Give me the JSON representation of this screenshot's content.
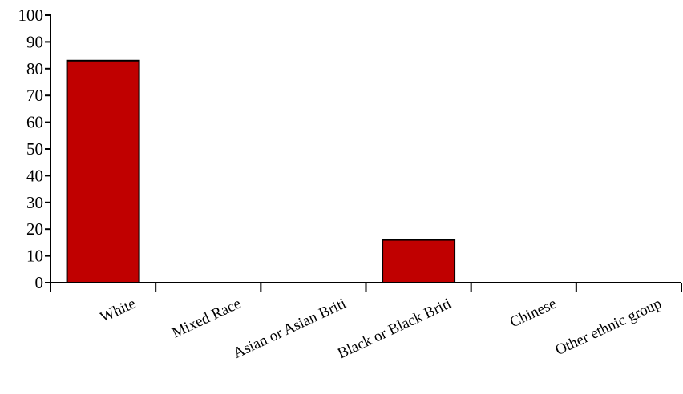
{
  "chart_data": {
    "type": "bar",
    "title": "",
    "xlabel": "",
    "ylabel": "",
    "categories": [
      "White",
      "Mixed Race",
      "Asian or Asian Briti",
      "Black or Black Briti",
      "Chinese",
      "Other ethnic group"
    ],
    "values": [
      83,
      0,
      0,
      16,
      0,
      0
    ],
    "ylim": [
      0,
      100
    ],
    "yticks": [
      "0",
      "10",
      "20",
      "30",
      "40",
      "50",
      "60",
      "70",
      "80",
      "90",
      "100"
    ],
    "grid": false,
    "legend": "none",
    "colors": {
      "bar": "#c00000",
      "bar_stroke": "#000000",
      "axis": "#000000"
    }
  }
}
